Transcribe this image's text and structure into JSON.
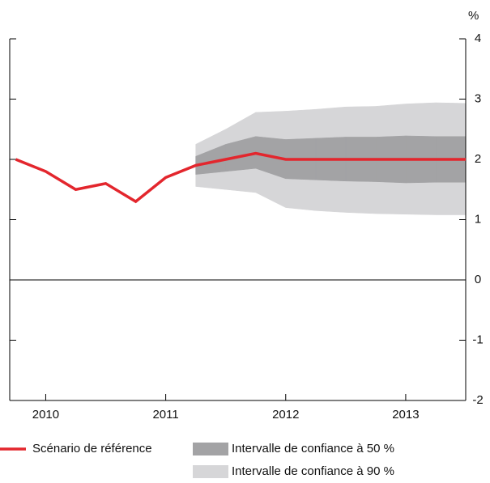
{
  "chart_data": {
    "type": "fan",
    "y_unit": "%",
    "x": [
      2010.25,
      2010.5,
      2010.75,
      2011.0,
      2011.25,
      2011.5,
      2011.75,
      2012.0,
      2012.25,
      2012.5,
      2012.75,
      2013.0,
      2013.25,
      2013.5,
      2013.75,
      2014.0
    ],
    "xlim": [
      2010.2,
      2014.0
    ],
    "xticks": [
      {
        "value": 2010.5,
        "label": "2010"
      },
      {
        "value": 2011.5,
        "label": "2011"
      },
      {
        "value": 2012.5,
        "label": "2012"
      },
      {
        "value": 2013.5,
        "label": "2013"
      }
    ],
    "ylim": [
      -2,
      4
    ],
    "yticks": [
      -2,
      -1,
      0,
      1,
      2,
      3,
      4
    ],
    "series": [
      {
        "name": "Scénario de référence",
        "color": "#e3262d",
        "values": [
          2.0,
          1.8,
          1.5,
          1.6,
          1.3,
          1.7,
          1.9,
          2.0,
          2.1,
          2.0,
          2.0,
          2.0,
          2.0,
          2.0,
          2.0,
          2.0
        ]
      },
      {
        "name": "Intervalle de confiance à 50 %",
        "color": "#a3a3a5",
        "lower": [
          null,
          null,
          null,
          null,
          null,
          null,
          1.75,
          1.8,
          1.85,
          1.68,
          1.66,
          1.64,
          1.63,
          1.61,
          1.62,
          1.62
        ],
        "upper": [
          null,
          null,
          null,
          null,
          null,
          null,
          2.05,
          2.25,
          2.38,
          2.33,
          2.35,
          2.37,
          2.37,
          2.39,
          2.38,
          2.38
        ]
      },
      {
        "name": "Intervalle de confiance à 90 %",
        "color": "#d6d6d8",
        "lower": [
          null,
          null,
          null,
          null,
          null,
          null,
          1.55,
          1.5,
          1.45,
          1.2,
          1.15,
          1.12,
          1.1,
          1.09,
          1.08,
          1.08
        ],
        "upper": [
          null,
          null,
          null,
          null,
          null,
          null,
          2.25,
          2.5,
          2.78,
          2.8,
          2.83,
          2.87,
          2.88,
          2.92,
          2.94,
          2.93
        ]
      }
    ]
  }
}
